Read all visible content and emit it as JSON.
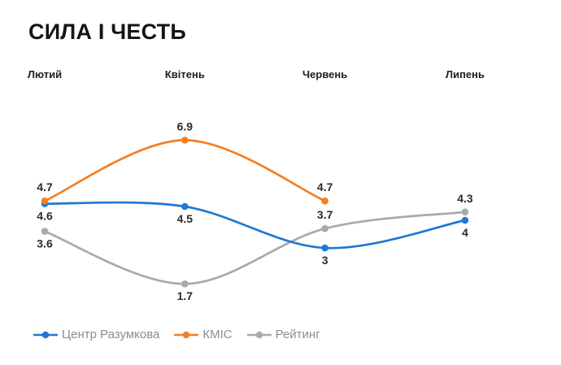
{
  "title": "СИЛА І ЧЕСТЬ",
  "chart_data": {
    "type": "line",
    "title": "СИЛА І ЧЕСТЬ",
    "categories": [
      "Лютий",
      "Квітень",
      "Червень",
      "Липень"
    ],
    "series": [
      {
        "name": "Центр Разумкова",
        "color": "#1E78D4",
        "values": [
          4.6,
          4.5,
          3,
          4
        ],
        "label_side": [
          "below",
          "below",
          "below",
          "below"
        ]
      },
      {
        "name": "КМІС",
        "color": "#F57E21",
        "values": [
          4.7,
          6.9,
          4.7,
          null
        ],
        "label_side": [
          "above",
          "above",
          "above",
          null
        ]
      },
      {
        "name": "Рейтинг",
        "color": "#A9A9A9",
        "values": [
          3.6,
          1.7,
          3.7,
          4.3
        ],
        "label_side": [
          "below",
          "below",
          "above",
          "above"
        ]
      }
    ],
    "ylim": [
      1,
      7.5
    ],
    "grid": false,
    "x_axis_position": "top",
    "legend_position": "bottom-left",
    "draw_order": [
      2,
      0,
      1
    ],
    "value_label_color": "#2B2B2B",
    "month_label_color": "#1F1F1F",
    "legend_text_color": "#8C8C8C"
  }
}
